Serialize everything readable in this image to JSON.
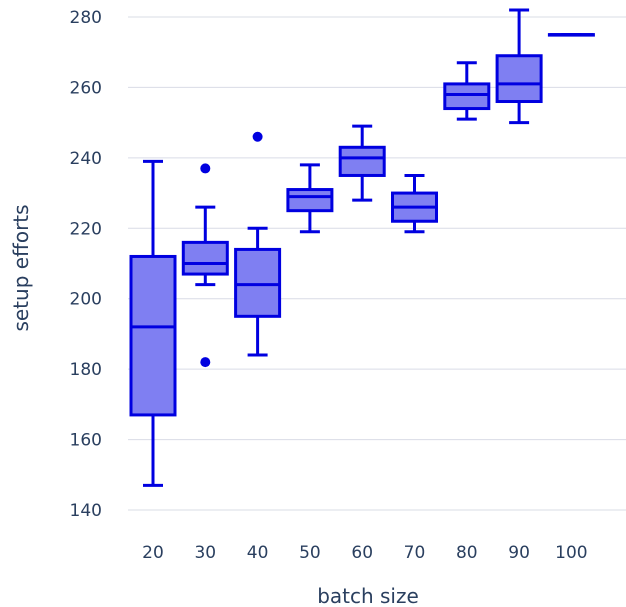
{
  "chart_data": {
    "type": "box",
    "xlabel": "batch size",
    "ylabel": "setup efforts",
    "ylim": [
      137,
      284
    ],
    "y_ticks": [
      140,
      160,
      180,
      200,
      220,
      240,
      260,
      280
    ],
    "grid": true,
    "colors": {
      "box_fill": "#7f7ff2",
      "box_line": "#0000e0",
      "grid": "#d9dce6",
      "text": "#2a3f5f"
    },
    "categories": [
      "20",
      "30",
      "40",
      "50",
      "60",
      "70",
      "80",
      "90",
      "100"
    ],
    "boxes": [
      {
        "label": "20",
        "lower_whisker": 147,
        "q1": 167,
        "median": 192,
        "q3": 212,
        "upper_whisker": 239,
        "outliers": []
      },
      {
        "label": "30",
        "lower_whisker": 204,
        "q1": 207,
        "median": 210,
        "q3": 216,
        "upper_whisker": 226,
        "outliers": [
          237,
          182
        ]
      },
      {
        "label": "40",
        "lower_whisker": 184,
        "q1": 195,
        "median": 204,
        "q3": 214,
        "upper_whisker": 220,
        "outliers": [
          246
        ]
      },
      {
        "label": "50",
        "lower_whisker": 219,
        "q1": 225,
        "median": 229,
        "q3": 231,
        "upper_whisker": 238,
        "outliers": []
      },
      {
        "label": "60",
        "lower_whisker": 228,
        "q1": 235,
        "median": 240,
        "q3": 243,
        "upper_whisker": 249,
        "outliers": []
      },
      {
        "label": "70",
        "lower_whisker": 219,
        "q1": 222,
        "median": 226,
        "q3": 230,
        "upper_whisker": 235,
        "outliers": []
      },
      {
        "label": "80",
        "lower_whisker": 251,
        "q1": 254,
        "median": 258,
        "q3": 261,
        "upper_whisker": 267,
        "outliers": []
      },
      {
        "label": "90",
        "lower_whisker": 250,
        "q1": 256,
        "median": 261,
        "q3": 269,
        "upper_whisker": 282,
        "outliers": []
      },
      {
        "label": "100",
        "lower_whisker": 275,
        "q1": 275,
        "median": 275,
        "q3": 275,
        "upper_whisker": 275,
        "outliers": []
      }
    ]
  }
}
